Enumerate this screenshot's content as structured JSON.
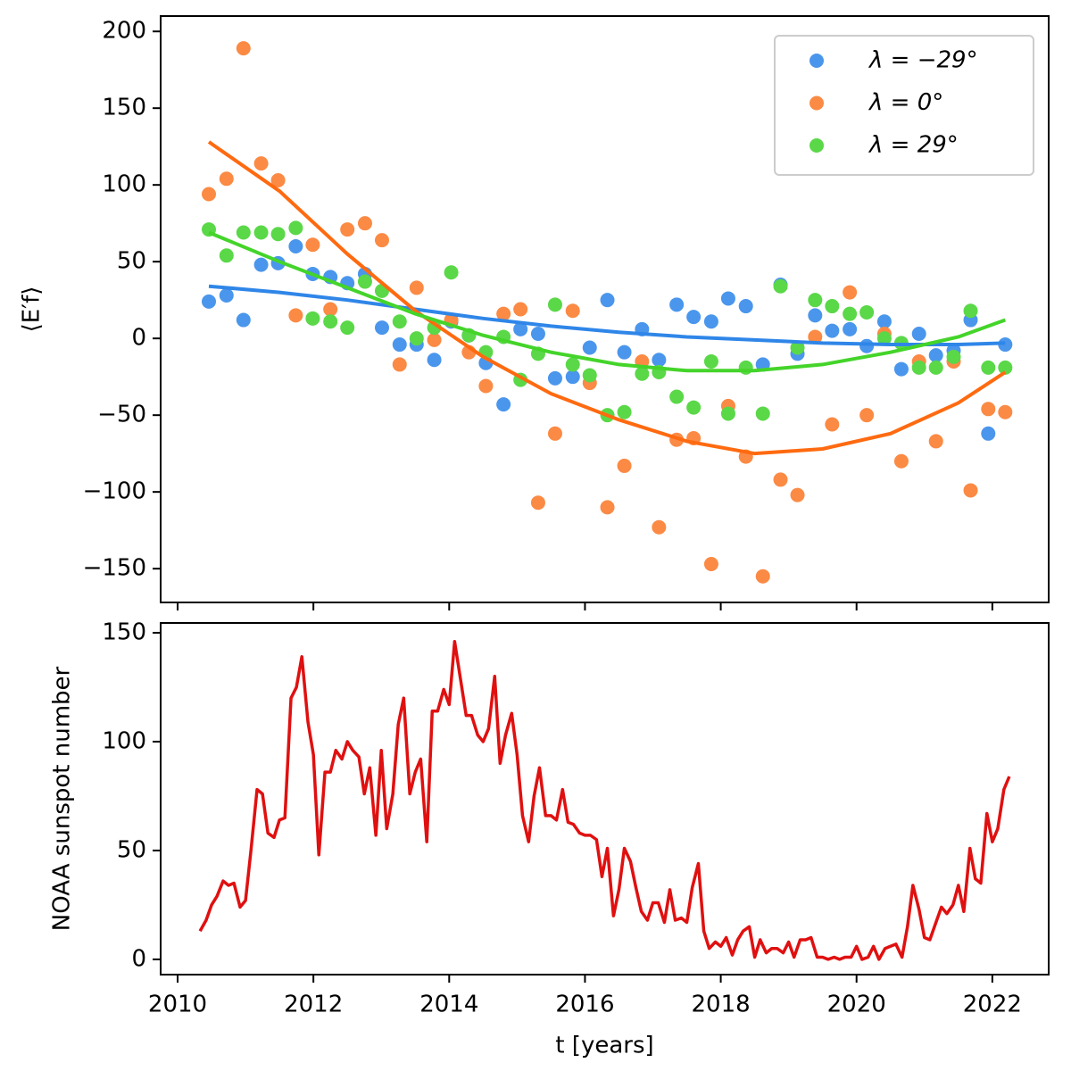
{
  "chart_data": [
    {
      "type": "scatter",
      "ylabel": "⟨E′f⟩",
      "x": [
        2010.46,
        2010.72,
        2010.97,
        2011.23,
        2011.48,
        2011.74,
        2011.99,
        2012.25,
        2012.5,
        2012.76,
        2013.01,
        2013.27,
        2013.52,
        2013.78,
        2014.03,
        2014.29,
        2014.54,
        2014.8,
        2015.05,
        2015.31,
        2015.56,
        2015.82,
        2016.07,
        2016.33,
        2016.58,
        2016.84,
        2017.09,
        2017.35,
        2017.6,
        2017.86,
        2018.11,
        2018.37,
        2018.62,
        2018.88,
        2019.13,
        2019.39,
        2019.64,
        2019.9,
        2020.15,
        2020.41,
        2020.66,
        2020.92,
        2021.17,
        2021.43,
        2021.68,
        2021.94,
        2022.19
      ],
      "series": [
        {
          "name": "λ = −29°",
          "color": "#4a96ec",
          "values": [
            24,
            28,
            12,
            48,
            49,
            60,
            42,
            40,
            36,
            42,
            7,
            -4,
            -4,
            -14,
            11,
            2,
            -16,
            -43,
            6,
            3,
            -26,
            -25,
            -6,
            25,
            -9,
            6,
            -14,
            22,
            14,
            11,
            26,
            21,
            -17,
            35,
            -10,
            15,
            5,
            6,
            -5,
            11,
            -20,
            3,
            -11,
            -8,
            12,
            -62,
            -4
          ]
        },
        {
          "name": "λ = 0°",
          "color": "#fb8a44",
          "values": [
            94,
            104,
            189,
            114,
            103,
            15,
            61,
            19,
            71,
            75,
            64,
            -17,
            33,
            -1,
            12,
            -9,
            -31,
            16,
            19,
            -107,
            -62,
            18,
            -29,
            -110,
            -83,
            -15,
            -123,
            -66,
            -65,
            -147,
            -44,
            -77,
            -155,
            -92,
            -102,
            1,
            -56,
            30,
            -50,
            3,
            -80,
            -15,
            -67,
            -15,
            -99,
            -46,
            -48
          ]
        },
        {
          "name": "λ = 29°",
          "color": "#5ad848",
          "values": [
            71,
            54,
            69,
            69,
            68,
            72,
            13,
            11,
            7,
            37,
            31,
            11,
            0,
            7,
            43,
            2,
            -9,
            1,
            -27,
            -10,
            22,
            -17,
            -24,
            -50,
            -48,
            -23,
            -22,
            -38,
            -45,
            -15,
            -49,
            -19,
            -49,
            34,
            -6,
            25,
            21,
            16,
            17,
            0,
            -3,
            -19,
            -19,
            -12,
            18,
            -19,
            -19
          ]
        }
      ],
      "fit_x": [
        2010.46,
        2011.5,
        2012.5,
        2013.5,
        2014.5,
        2015.5,
        2016.5,
        2017.5,
        2018.5,
        2019.5,
        2020.5,
        2021.5,
        2022.19
      ],
      "fits": [
        {
          "color": "#2f86e8",
          "values": [
            34,
            30,
            25,
            19,
            13,
            8,
            4,
            1,
            -1,
            -3,
            -4,
            -4,
            -3
          ]
        },
        {
          "color": "#ff6a10",
          "values": [
            128,
            96,
            55,
            18,
            -12,
            -36,
            -53,
            -67,
            -75,
            -72,
            -62,
            -42,
            -22
          ]
        },
        {
          "color": "#44d42a",
          "values": [
            69,
            50,
            33,
            16,
            2,
            -9,
            -17,
            -21,
            -21,
            -17,
            -9,
            1,
            12
          ]
        }
      ],
      "xlim": [
        2009.75,
        2022.83
      ],
      "xticks": [
        2010,
        2012,
        2014,
        2016,
        2018,
        2020,
        2022
      ],
      "ylim": [
        -172,
        210
      ],
      "yticks": [
        {
          "value": -150,
          "label": "−150"
        },
        {
          "value": -100,
          "label": "−100"
        },
        {
          "value": -50,
          "label": "−50"
        },
        0,
        50,
        100,
        150,
        200
      ],
      "legend": "upper right"
    },
    {
      "type": "line",
      "xlabel": "t [years]",
      "ylabel": "NOAA sunspot number",
      "x": [
        2010.33,
        2010.42,
        2010.5,
        2010.58,
        2010.67,
        2010.75,
        2010.83,
        2010.92,
        2011,
        2011.08,
        2011.17,
        2011.25,
        2011.33,
        2011.42,
        2011.5,
        2011.58,
        2011.67,
        2011.75,
        2011.83,
        2011.92,
        2012,
        2012.08,
        2012.17,
        2012.25,
        2012.33,
        2012.42,
        2012.5,
        2012.58,
        2012.67,
        2012.75,
        2012.83,
        2012.92,
        2013,
        2013.08,
        2013.17,
        2013.25,
        2013.33,
        2013.42,
        2013.5,
        2013.58,
        2013.67,
        2013.75,
        2013.83,
        2013.92,
        2014,
        2014.08,
        2014.17,
        2014.25,
        2014.33,
        2014.42,
        2014.5,
        2014.58,
        2014.67,
        2014.75,
        2014.83,
        2014.92,
        2015,
        2015.08,
        2015.17,
        2015.25,
        2015.33,
        2015.42,
        2015.5,
        2015.58,
        2015.67,
        2015.75,
        2015.83,
        2015.92,
        2016,
        2016.08,
        2016.17,
        2016.25,
        2016.33,
        2016.42,
        2016.5,
        2016.58,
        2016.67,
        2016.75,
        2016.83,
        2016.92,
        2017,
        2017.08,
        2017.17,
        2017.25,
        2017.33,
        2017.42,
        2017.5,
        2017.58,
        2017.67,
        2017.75,
        2017.83,
        2017.92,
        2018,
        2018.08,
        2018.17,
        2018.25,
        2018.33,
        2018.42,
        2018.5,
        2018.58,
        2018.67,
        2018.75,
        2018.83,
        2018.92,
        2019,
        2019.08,
        2019.17,
        2019.25,
        2019.33,
        2019.42,
        2019.5,
        2019.58,
        2019.67,
        2019.75,
        2019.83,
        2019.92,
        2020,
        2020.08,
        2020.17,
        2020.25,
        2020.33,
        2020.42,
        2020.5,
        2020.58,
        2020.67,
        2020.75,
        2020.83,
        2020.92,
        2021,
        2021.08,
        2021.17,
        2021.25,
        2021.33,
        2021.42,
        2021.5,
        2021.58,
        2021.67,
        2021.75,
        2021.83,
        2021.92,
        2022,
        2022.08,
        2022.17,
        2022.25
      ],
      "series": [
        {
          "color": "#e01010",
          "values": [
            13,
            18,
            25,
            29,
            36,
            34,
            35,
            24,
            27,
            50,
            78,
            76,
            58,
            56,
            64,
            65,
            120,
            125,
            139,
            109,
            94,
            48,
            86,
            86,
            96,
            92,
            100,
            96,
            93,
            76,
            88,
            57,
            96,
            60,
            76,
            108,
            120,
            76,
            86,
            92,
            54,
            114,
            114,
            124,
            117,
            146,
            128,
            112,
            112,
            103,
            100,
            106,
            130,
            90,
            103,
            113,
            94,
            66,
            54,
            75,
            88,
            66,
            66,
            64,
            78,
            63,
            62,
            58,
            57,
            57,
            55,
            38,
            51,
            20,
            32,
            51,
            45,
            33,
            22,
            18,
            26,
            26,
            17,
            32,
            18,
            19,
            17,
            33,
            44,
            13,
            5,
            8,
            6,
            10,
            2,
            9,
            13,
            15,
            1,
            9,
            3,
            5,
            5,
            3,
            8,
            1,
            9,
            9,
            10,
            1,
            1,
            0,
            1,
            0,
            1,
            1,
            6,
            0,
            1,
            6,
            0,
            5,
            6,
            7,
            1,
            15,
            34,
            23,
            10,
            9,
            17,
            24,
            21,
            25,
            34,
            22,
            51,
            37,
            35,
            67,
            54,
            60,
            78,
            84
          ]
        }
      ],
      "xlim": [
        2009.75,
        2022.83
      ],
      "xticks": [
        2010,
        2012,
        2014,
        2016,
        2018,
        2020,
        2022
      ],
      "ylim": [
        -7,
        154.5
      ],
      "yticks": [
        0,
        50,
        100,
        150
      ]
    }
  ]
}
